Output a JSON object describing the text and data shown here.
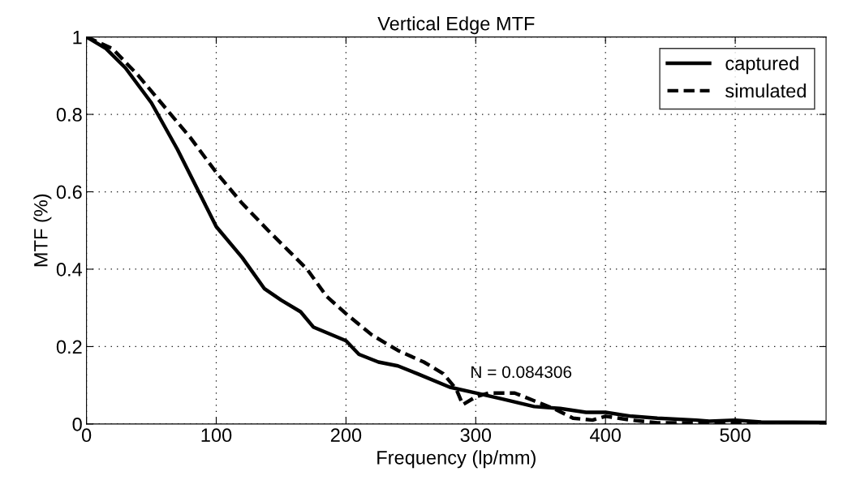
{
  "chart_data": {
    "type": "line",
    "title": "Vertical Edge MTF",
    "xlabel": "Frequency (lp/mm)",
    "ylabel": "MTF (%)",
    "xlim": [
      0,
      570
    ],
    "ylim": [
      0,
      1
    ],
    "xticks": [
      0,
      100,
      200,
      300,
      400,
      500
    ],
    "yticks": [
      0,
      0.2,
      0.4,
      0.6,
      0.8,
      1
    ],
    "grid": true,
    "legend": "top right",
    "annotations": [
      {
        "text": "N = 0.084306",
        "x": 300,
        "y": 0.084306
      }
    ],
    "series": [
      {
        "name": "captured",
        "color": "#000000",
        "line_style": "solid",
        "x": [
          0,
          15,
          30,
          50,
          70,
          100,
          120,
          137,
          150,
          165,
          175,
          200,
          210,
          225,
          240,
          255,
          280,
          300,
          320,
          345,
          365,
          385,
          400,
          420,
          440,
          470,
          480,
          500,
          520,
          570
        ],
        "values": [
          1,
          0.97,
          0.92,
          0.83,
          0.71,
          0.51,
          0.43,
          0.35,
          0.32,
          0.29,
          0.25,
          0.215,
          0.18,
          0.16,
          0.15,
          0.13,
          0.095,
          0.08,
          0.065,
          0.045,
          0.04,
          0.03,
          0.03,
          0.02,
          0.015,
          0.01,
          0.007,
          0.01,
          0.005,
          0.004
        ]
      },
      {
        "name": "simulated",
        "color": "#000000",
        "line_style": "dashed",
        "x": [
          0,
          20,
          40,
          60,
          80,
          100,
          120,
          140,
          155,
          170,
          185,
          200,
          220,
          240,
          260,
          275,
          285,
          290,
          300,
          310,
          330,
          345,
          360,
          375,
          390,
          400,
          420,
          440,
          480,
          570
        ],
        "values": [
          1,
          0.97,
          0.9,
          0.82,
          0.74,
          0.65,
          0.57,
          0.5,
          0.45,
          0.4,
          0.33,
          0.285,
          0.23,
          0.19,
          0.16,
          0.13,
          0.09,
          0.05,
          0.07,
          0.08,
          0.08,
          0.06,
          0.04,
          0.015,
          0.01,
          0.02,
          0.01,
          0.003,
          0.003,
          0.003
        ]
      }
    ]
  }
}
